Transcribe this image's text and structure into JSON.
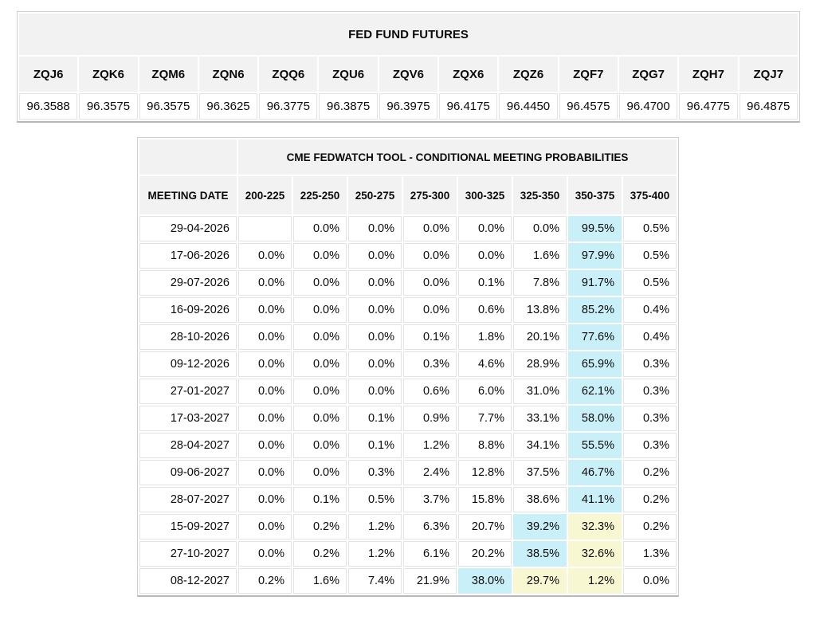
{
  "colors": {
    "header_bg": "#f2f2f2",
    "highlight_cyan": "#c9eff8",
    "highlight_yellow": "#f7f7d2"
  },
  "chart_data": [
    {
      "type": "table",
      "title": "FED FUND FUTURES",
      "columns": [
        "ZQJ6",
        "ZQK6",
        "ZQM6",
        "ZQN6",
        "ZQQ6",
        "ZQU6",
        "ZQV6",
        "ZQX6",
        "ZQZ6",
        "ZQF7",
        "ZQG7",
        "ZQH7",
        "ZQJ7"
      ],
      "values": [
        "96.3588",
        "96.3575",
        "96.3575",
        "96.3625",
        "96.3775",
        "96.3875",
        "96.3975",
        "96.4175",
        "96.4450",
        "96.4575",
        "96.4700",
        "96.4775",
        "96.4875"
      ]
    },
    {
      "type": "table",
      "title": "CME FEDWATCH TOOL - CONDITIONAL MEETING PROBABILITIES",
      "date_header": "MEETING DATE",
      "range_headers": [
        "200-225",
        "225-250",
        "250-275",
        "275-300",
        "300-325",
        "325-350",
        "350-375",
        "375-400"
      ],
      "highlight_legend": {
        "c": "cyan = highest probability",
        "y": "yellow = secondary highlight"
      },
      "rows": [
        {
          "date": "29-04-2026",
          "values": [
            "",
            "0.0%",
            "0.0%",
            "0.0%",
            "0.0%",
            "0.0%",
            "99.5%",
            "0.5%"
          ],
          "hl": [
            "",
            "",
            "",
            "",
            "",
            "",
            "c",
            ""
          ]
        },
        {
          "date": "17-06-2026",
          "values": [
            "0.0%",
            "0.0%",
            "0.0%",
            "0.0%",
            "0.0%",
            "1.6%",
            "97.9%",
            "0.5%"
          ],
          "hl": [
            "",
            "",
            "",
            "",
            "",
            "",
            "c",
            ""
          ]
        },
        {
          "date": "29-07-2026",
          "values": [
            "0.0%",
            "0.0%",
            "0.0%",
            "0.0%",
            "0.1%",
            "7.8%",
            "91.7%",
            "0.5%"
          ],
          "hl": [
            "",
            "",
            "",
            "",
            "",
            "",
            "c",
            ""
          ]
        },
        {
          "date": "16-09-2026",
          "values": [
            "0.0%",
            "0.0%",
            "0.0%",
            "0.0%",
            "0.6%",
            "13.8%",
            "85.2%",
            "0.4%"
          ],
          "hl": [
            "",
            "",
            "",
            "",
            "",
            "",
            "c",
            ""
          ]
        },
        {
          "date": "28-10-2026",
          "values": [
            "0.0%",
            "0.0%",
            "0.0%",
            "0.1%",
            "1.8%",
            "20.1%",
            "77.6%",
            "0.4%"
          ],
          "hl": [
            "",
            "",
            "",
            "",
            "",
            "",
            "c",
            ""
          ]
        },
        {
          "date": "09-12-2026",
          "values": [
            "0.0%",
            "0.0%",
            "0.0%",
            "0.3%",
            "4.6%",
            "28.9%",
            "65.9%",
            "0.3%"
          ],
          "hl": [
            "",
            "",
            "",
            "",
            "",
            "",
            "c",
            ""
          ]
        },
        {
          "date": "27-01-2027",
          "values": [
            "0.0%",
            "0.0%",
            "0.0%",
            "0.6%",
            "6.0%",
            "31.0%",
            "62.1%",
            "0.3%"
          ],
          "hl": [
            "",
            "",
            "",
            "",
            "",
            "",
            "c",
            ""
          ]
        },
        {
          "date": "17-03-2027",
          "values": [
            "0.0%",
            "0.0%",
            "0.1%",
            "0.9%",
            "7.7%",
            "33.1%",
            "58.0%",
            "0.3%"
          ],
          "hl": [
            "",
            "",
            "",
            "",
            "",
            "",
            "c",
            ""
          ]
        },
        {
          "date": "28-04-2027",
          "values": [
            "0.0%",
            "0.0%",
            "0.1%",
            "1.2%",
            "8.8%",
            "34.1%",
            "55.5%",
            "0.3%"
          ],
          "hl": [
            "",
            "",
            "",
            "",
            "",
            "",
            "c",
            ""
          ]
        },
        {
          "date": "09-06-2027",
          "values": [
            "0.0%",
            "0.0%",
            "0.3%",
            "2.4%",
            "12.8%",
            "37.5%",
            "46.7%",
            "0.2%"
          ],
          "hl": [
            "",
            "",
            "",
            "",
            "",
            "",
            "c",
            ""
          ]
        },
        {
          "date": "28-07-2027",
          "values": [
            "0.0%",
            "0.1%",
            "0.5%",
            "3.7%",
            "15.8%",
            "38.6%",
            "41.1%",
            "0.2%"
          ],
          "hl": [
            "",
            "",
            "",
            "",
            "",
            "",
            "c",
            ""
          ]
        },
        {
          "date": "15-09-2027",
          "values": [
            "0.0%",
            "0.2%",
            "1.2%",
            "6.3%",
            "20.7%",
            "39.2%",
            "32.3%",
            "0.2%"
          ],
          "hl": [
            "",
            "",
            "",
            "",
            "",
            "c",
            "y",
            ""
          ]
        },
        {
          "date": "27-10-2027",
          "values": [
            "0.0%",
            "0.2%",
            "1.2%",
            "6.1%",
            "20.2%",
            "38.5%",
            "32.6%",
            "1.3%"
          ],
          "hl": [
            "",
            "",
            "",
            "",
            "",
            "c",
            "y",
            ""
          ]
        },
        {
          "date": "08-12-2027",
          "values": [
            "0.2%",
            "1.6%",
            "7.4%",
            "21.9%",
            "38.0%",
            "29.7%",
            "1.2%",
            "0.0%"
          ],
          "hl": [
            "",
            "",
            "",
            "",
            "c",
            "y",
            "y",
            ""
          ]
        }
      ]
    }
  ]
}
